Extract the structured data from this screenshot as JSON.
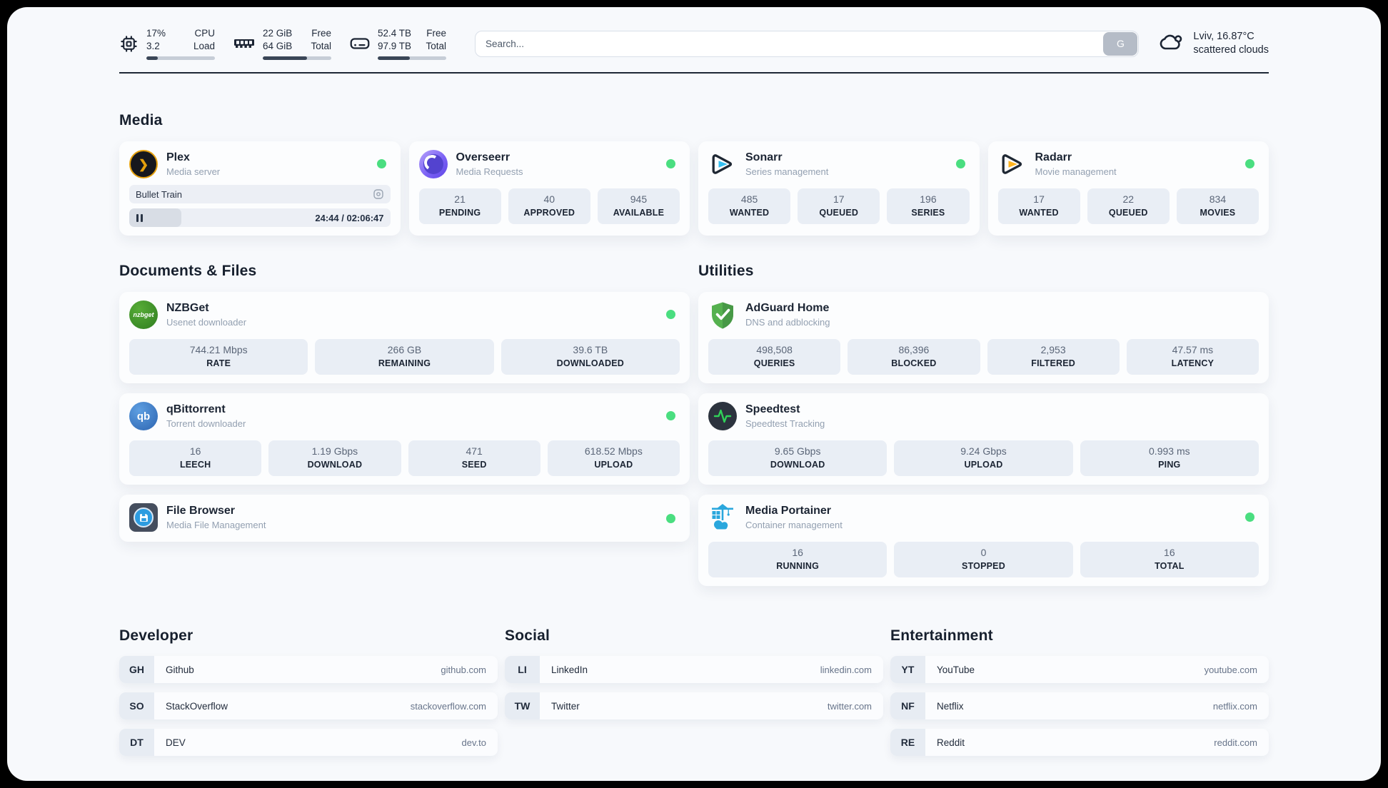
{
  "header": {
    "cpu": {
      "value_top": "17%",
      "value_bottom": "3.2",
      "label_top": "CPU",
      "label_bottom": "Load",
      "progress_pct": 17
    },
    "ram": {
      "value_top": "22 GiB",
      "value_bottom": "64 GiB",
      "label_top": "Free",
      "label_bottom": "Total",
      "progress_pct": 65
    },
    "disk": {
      "value_top": "52.4 TB",
      "value_bottom": "97.9 TB",
      "label_top": "Free",
      "label_bottom": "Total",
      "progress_pct": 47
    },
    "search": {
      "placeholder": "Search...",
      "button_label": "G"
    },
    "weather": {
      "line1": "Lviv, 16.87°C",
      "line2": "scattered clouds"
    }
  },
  "media": {
    "title": "Media",
    "plex": {
      "name": "Plex",
      "subtitle": "Media server",
      "now_playing": "Bullet Train",
      "time_display": "24:44 / 02:06:47",
      "progress_pct": 20
    },
    "overseerr": {
      "name": "Overseerr",
      "subtitle": "Media Requests",
      "stats": [
        {
          "value": "21",
          "label": "PENDING"
        },
        {
          "value": "40",
          "label": "APPROVED"
        },
        {
          "value": "945",
          "label": "AVAILABLE"
        }
      ]
    },
    "sonarr": {
      "name": "Sonarr",
      "subtitle": "Series management",
      "stats": [
        {
          "value": "485",
          "label": "WANTED"
        },
        {
          "value": "17",
          "label": "QUEUED"
        },
        {
          "value": "196",
          "label": "SERIES"
        }
      ]
    },
    "radarr": {
      "name": "Radarr",
      "subtitle": "Movie management",
      "stats": [
        {
          "value": "17",
          "label": "WANTED"
        },
        {
          "value": "22",
          "label": "QUEUED"
        },
        {
          "value": "834",
          "label": "MOVIES"
        }
      ]
    }
  },
  "documents": {
    "title": "Documents & Files",
    "nzbget": {
      "name": "NZBGet",
      "subtitle": "Usenet downloader",
      "logo_text": "nzbget",
      "stats": [
        {
          "value": "744.21 Mbps",
          "label": "RATE"
        },
        {
          "value": "266 GB",
          "label": "REMAINING"
        },
        {
          "value": "39.6 TB",
          "label": "DOWNLOADED"
        }
      ]
    },
    "qbittorrent": {
      "name": "qBittorrent",
      "subtitle": "Torrent downloader",
      "logo_text": "qb",
      "stats": [
        {
          "value": "16",
          "label": "LEECH"
        },
        {
          "value": "1.19 Gbps",
          "label": "DOWNLOAD"
        },
        {
          "value": "471",
          "label": "SEED"
        },
        {
          "value": "618.52 Mbps",
          "label": "UPLOAD"
        }
      ]
    },
    "filebrowser": {
      "name": "File Browser",
      "subtitle": "Media File Management"
    }
  },
  "utilities": {
    "title": "Utilities",
    "adguard": {
      "name": "AdGuard Home",
      "subtitle": "DNS and adblocking",
      "stats": [
        {
          "value": "498,508",
          "label": "QUERIES"
        },
        {
          "value": "86,396",
          "label": "BLOCKED"
        },
        {
          "value": "2,953",
          "label": "FILTERED"
        },
        {
          "value": "47.57 ms",
          "label": "LATENCY"
        }
      ]
    },
    "speedtest": {
      "name": "Speedtest",
      "subtitle": "Speedtest Tracking",
      "stats": [
        {
          "value": "9.65 Gbps",
          "label": "DOWNLOAD"
        },
        {
          "value": "9.24 Gbps",
          "label": "UPLOAD"
        },
        {
          "value": "0.993 ms",
          "label": "PING"
        }
      ]
    },
    "portainer": {
      "name": "Media Portainer",
      "subtitle": "Container management",
      "stats": [
        {
          "value": "16",
          "label": "RUNNING"
        },
        {
          "value": "0",
          "label": "STOPPED"
        },
        {
          "value": "16",
          "label": "TOTAL"
        }
      ]
    }
  },
  "bookmarks": {
    "developer": {
      "title": "Developer",
      "links": [
        {
          "badge": "GH",
          "name": "Github",
          "url": "github.com"
        },
        {
          "badge": "SO",
          "name": "StackOverflow",
          "url": "stackoverflow.com"
        },
        {
          "badge": "DT",
          "name": "DEV",
          "url": "dev.to"
        }
      ]
    },
    "social": {
      "title": "Social",
      "links": [
        {
          "badge": "LI",
          "name": "LinkedIn",
          "url": "linkedin.com"
        },
        {
          "badge": "TW",
          "name": "Twitter",
          "url": "twitter.com"
        }
      ]
    },
    "entertainment": {
      "title": "Entertainment",
      "links": [
        {
          "badge": "YT",
          "name": "YouTube",
          "url": "youtube.com"
        },
        {
          "badge": "NF",
          "name": "Netflix",
          "url": "netflix.com"
        },
        {
          "badge": "RE",
          "name": "Reddit",
          "url": "reddit.com"
        }
      ]
    }
  },
  "colors": {
    "accent_green": "#4ade80",
    "page_bg": "#f7f9fc",
    "stat_box_bg": "#e9eef5"
  }
}
